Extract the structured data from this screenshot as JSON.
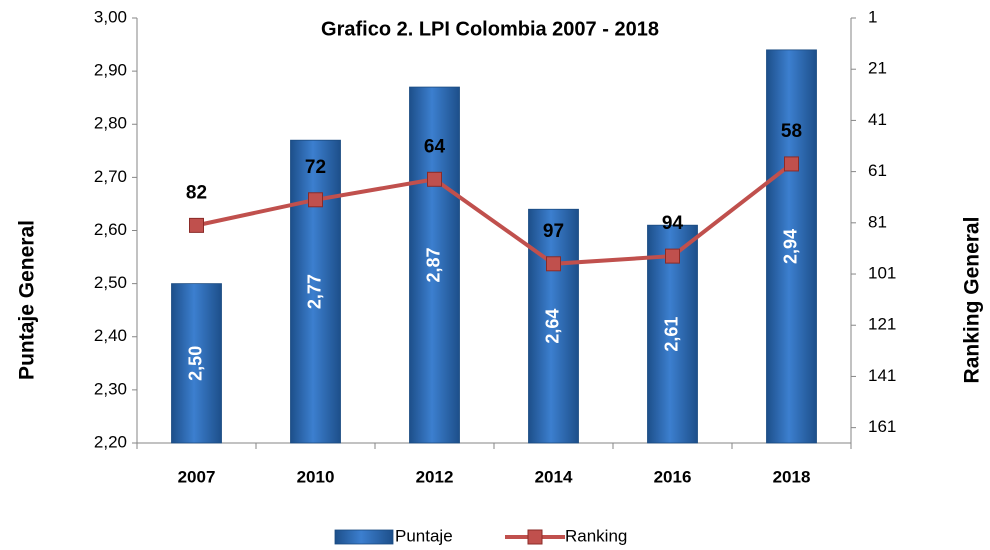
{
  "chart_data": {
    "type": "bar",
    "title": "Grafico 2. LPI Colombia 2007 - 2018",
    "categories": [
      "2007",
      "2010",
      "2012",
      "2014",
      "2016",
      "2018"
    ],
    "ylabel": "Puntaje General",
    "y2label": "Ranking General",
    "series": [
      {
        "name": "Puntaje",
        "color": "#2e6db4",
        "values": [
          2.5,
          2.77,
          2.87,
          2.64,
          2.61,
          2.94
        ],
        "value_labels": [
          "2,50",
          "2,77",
          "2,87",
          "2,64",
          "2,61",
          "2,94"
        ]
      },
      {
        "name": "Ranking",
        "type": "line",
        "axis": "y2",
        "color": "#c0504d",
        "values": [
          82,
          72,
          64,
          97,
          94,
          58
        ]
      }
    ],
    "ylim": [
      2.2,
      3.0
    ],
    "yticks": [
      {
        "value": 2.2,
        "label": "2,20"
      },
      {
        "value": 2.3,
        "label": "2,30"
      },
      {
        "value": 2.4,
        "label": "2,40"
      },
      {
        "value": 2.5,
        "label": "2,50"
      },
      {
        "value": 2.6,
        "label": "2,60"
      },
      {
        "value": 2.7,
        "label": "2,70"
      },
      {
        "value": 2.8,
        "label": "2,80"
      },
      {
        "value": 2.9,
        "label": "2,90"
      },
      {
        "value": 3.0,
        "label": "3,00"
      }
    ],
    "y2lim": [
      167,
      1
    ],
    "y2ticks": [
      1,
      21,
      41,
      61,
      81,
      101,
      121,
      141,
      161
    ],
    "legend": "bottom",
    "grid": false
  }
}
